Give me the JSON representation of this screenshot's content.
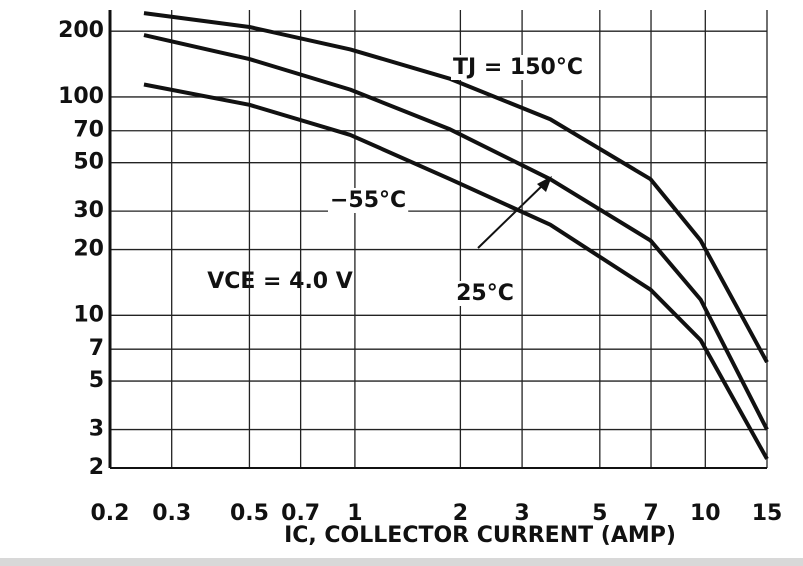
{
  "chart_data": {
    "type": "line",
    "x_label": "IC, COLLECTOR CURRENT (AMP)",
    "annotation": "VCE = 4.0 V",
    "x": [
      0.25,
      0.5,
      0.97,
      1.87,
      3.61,
      6.98,
      9.7,
      15
    ],
    "series": [
      {
        "name": "TJ = 150°C",
        "color": "#111111",
        "values": [
          242,
          209,
          165,
          121,
          79,
          42,
          22,
          6.1
        ]
      },
      {
        "name": "25°C",
        "color": "#111111",
        "values": [
          192,
          149,
          108,
          71,
          42,
          22,
          11.8,
          3.0
        ]
      },
      {
        "name": "−55°C",
        "color": "#111111",
        "values": [
          114,
          92,
          67,
          42,
          26,
          13.1,
          7.7,
          2.2
        ]
      }
    ],
    "xlim": [
      0.2,
      15
    ],
    "ylim": [
      2,
      250
    ],
    "xticks": [
      0.2,
      0.3,
      0.5,
      0.7,
      1,
      2,
      3,
      5,
      7,
      10,
      15
    ],
    "yticks": [
      2,
      3,
      5,
      7,
      10,
      20,
      30,
      50,
      70,
      100,
      200
    ],
    "xscale": "log",
    "yscale": "log",
    "grid": true
  }
}
